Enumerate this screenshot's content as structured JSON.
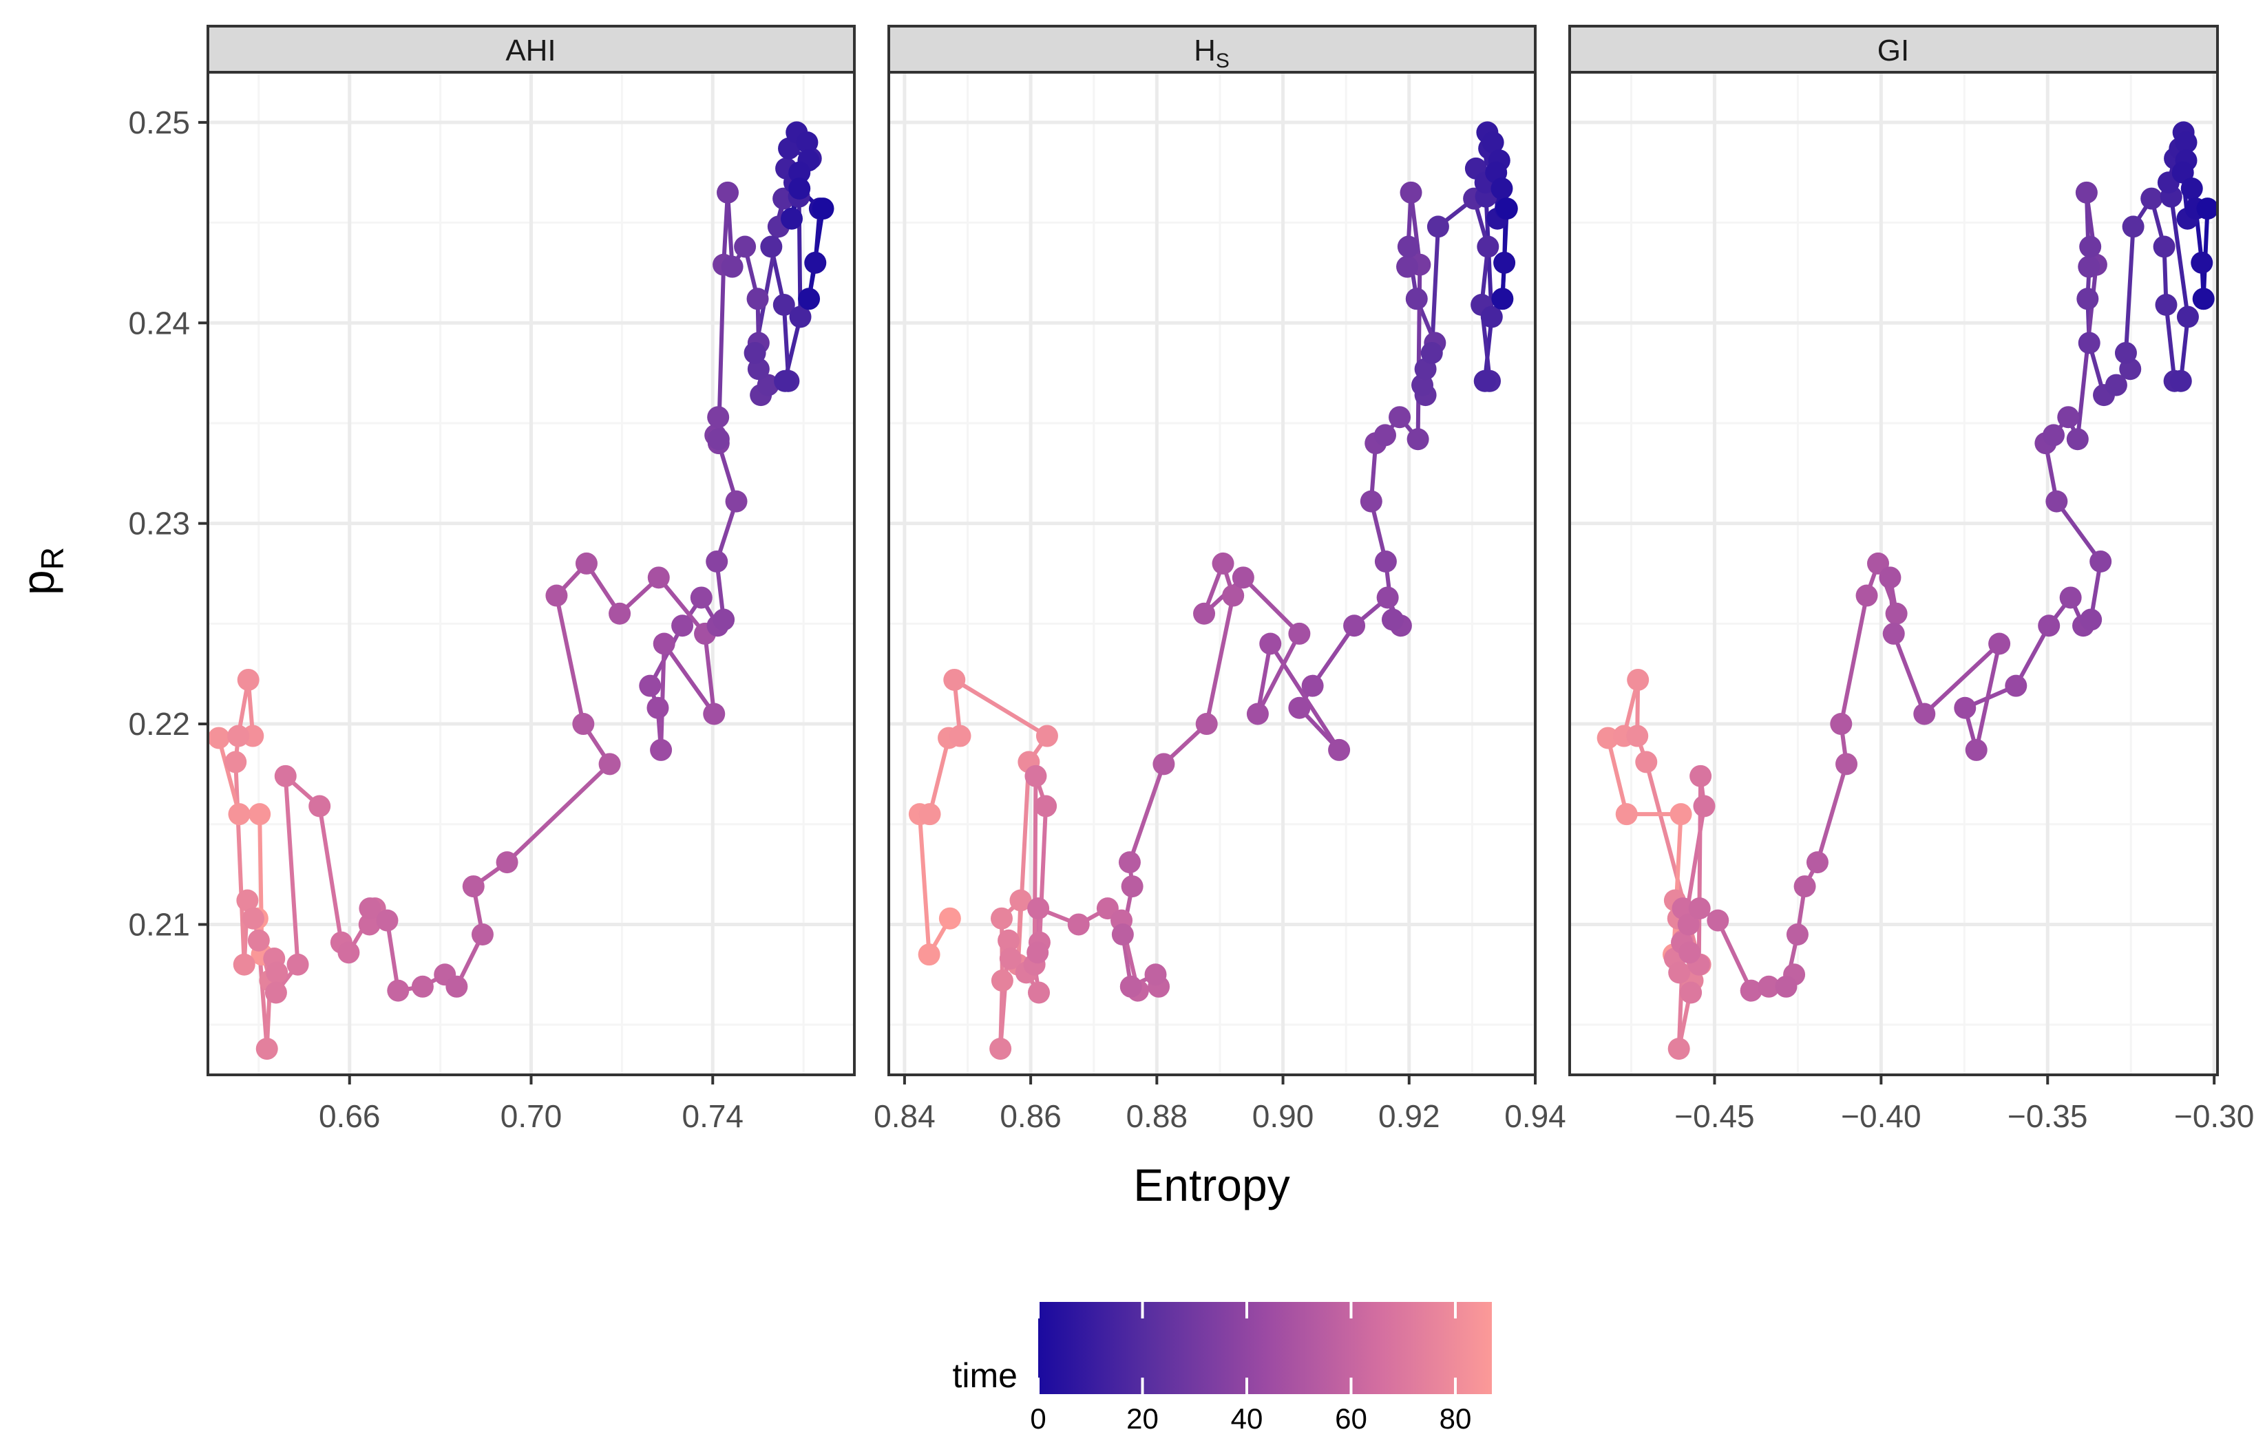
{
  "chart_data": {
    "type": "line",
    "subtype": "connected scatter, faceted",
    "xlabel": "Entropy",
    "ylabel": "p",
    "ylabel_sub": "R",
    "ylim": [
      0.2025,
      0.2525
    ],
    "y_ticks": [
      0.21,
      0.22,
      0.23,
      0.24,
      0.25
    ],
    "y_tick_labels": [
      "0.21",
      "0.22",
      "0.23",
      "0.24",
      "0.25"
    ],
    "grid": true,
    "facets": [
      {
        "name": "AHI",
        "label_main": "AHI",
        "label_sub": "",
        "xlim": [
          0.6288,
          0.7712
        ],
        "x_ticks": [
          0.66,
          0.7,
          0.74
        ],
        "x_tick_labels": [
          "0.66",
          "0.70",
          "0.74"
        ]
      },
      {
        "name": "Hs",
        "label_main": "H",
        "label_sub": "S",
        "xlim": [
          0.8375,
          0.94
        ],
        "x_ticks": [
          0.84,
          0.86,
          0.88,
          0.9,
          0.92,
          0.94
        ],
        "x_tick_labels": [
          "0.84",
          "0.86",
          "0.88",
          "0.90",
          "0.92",
          "0.94"
        ]
      },
      {
        "name": "GI",
        "label_main": "GI",
        "label_sub": "",
        "xlim": [
          -0.4935,
          -0.299
        ],
        "x_ticks": [
          -0.45,
          -0.4,
          -0.35,
          -0.3
        ],
        "x_tick_labels": [
          "−0.45",
          "−0.40",
          "−0.35",
          "−0.30"
        ]
      }
    ],
    "series": [
      {
        "name": "AHI",
        "x": [
          0.7643,
          0.7612,
          0.7626,
          0.7636,
          0.7591,
          0.7574,
          0.7591,
          0.7611,
          0.7608,
          0.7585,
          0.7568,
          0.7616,
          0.758,
          0.7562,
          0.759,
          0.7593,
          0.7559,
          0.7567,
          0.7557,
          0.7529,
          0.7556,
          0.7545,
          0.7493,
          0.7501,
          0.7522,
          0.7506,
          0.7501,
          0.7499,
          0.7471,
          0.7443,
          0.7433,
          0.7424,
          0.7413,
          0.7412,
          0.7406,
          0.7413,
          0.7452,
          0.7409,
          0.7424,
          0.7411,
          0.7375,
          0.7333,
          0.7262,
          0.7279,
          0.7286,
          0.7293,
          0.7403,
          0.7383,
          0.7281,
          0.7195,
          0.7122,
          0.7056,
          0.7115,
          0.7173,
          0.6947,
          0.6873,
          0.6893,
          0.6836,
          0.681,
          0.6761,
          0.6707,
          0.6683,
          0.6645,
          0.6644,
          0.6656,
          0.6598,
          0.6582,
          0.6534,
          0.6459,
          0.6486,
          0.6438,
          0.644,
          0.6434,
          0.64,
          0.6418,
          0.6425,
          0.6388,
          0.6375,
          0.6368,
          0.6349,
          0.6355,
          0.6377,
          0.6387,
          0.6312,
          0.6357,
          0.6402,
          0.6407,
          0.6397
        ],
        "y": [
          0.2457,
          0.2412,
          0.243,
          0.2457,
          0.2467,
          0.2452,
          0.2475,
          0.2481,
          0.249,
          0.2495,
          0.2487,
          0.2482,
          0.247,
          0.2477,
          0.2463,
          0.2403,
          0.2371,
          0.2371,
          0.2409,
          0.2438,
          0.2462,
          0.2448,
          0.2385,
          0.2377,
          0.2369,
          0.2364,
          0.239,
          0.2412,
          0.2438,
          0.2428,
          0.2465,
          0.2429,
          0.2342,
          0.2353,
          0.2344,
          0.234,
          0.2311,
          0.2281,
          0.2252,
          0.2249,
          0.2263,
          0.2249,
          0.2219,
          0.2208,
          0.2187,
          0.224,
          0.2205,
          0.2245,
          0.2273,
          0.2255,
          0.228,
          0.2264,
          0.22,
          0.218,
          0.2131,
          0.2119,
          0.2095,
          0.2069,
          0.2075,
          0.2069,
          0.2067,
          0.2102,
          0.2108,
          0.21,
          0.2108,
          0.2086,
          0.2091,
          0.2159,
          0.2174,
          0.208,
          0.2066,
          0.2076,
          0.2083,
          0.2092,
          0.2038,
          0.2072,
          0.2103,
          0.2112,
          0.208,
          0.2181,
          0.2194,
          0.2222,
          0.2194,
          0.2193,
          0.2155,
          0.2155,
          0.2085,
          0.2103
        ]
      },
      {
        "name": "Hs",
        "x": [
          0.9355,
          0.9348,
          0.9351,
          0.9353,
          0.9347,
          0.934,
          0.9338,
          0.9343,
          0.9333,
          0.9324,
          0.9327,
          0.9336,
          0.9321,
          0.9306,
          0.9322,
          0.9331,
          0.932,
          0.9328,
          0.9315,
          0.9325,
          0.9303,
          0.9246,
          0.9236,
          0.9226,
          0.9221,
          0.9226,
          0.9241,
          0.9212,
          0.9199,
          0.9197,
          0.9203,
          0.9217,
          0.9214,
          0.9185,
          0.9162,
          0.9147,
          0.914,
          0.9163,
          0.9174,
          0.9187,
          0.9166,
          0.9113,
          0.9047,
          0.9026,
          0.9089,
          0.898,
          0.896,
          0.9026,
          0.8937,
          0.8875,
          0.8905,
          0.8921,
          0.8879,
          0.8811,
          0.8757,
          0.8761,
          0.8746,
          0.8759,
          0.8798,
          0.8803,
          0.877,
          0.8744,
          0.8722,
          0.8676,
          0.8612,
          0.8611,
          0.8614,
          0.8624,
          0.8608,
          0.8606,
          0.8613,
          0.8593,
          0.8568,
          0.8565,
          0.8552,
          0.8555,
          0.8554,
          0.8584,
          0.858,
          0.8597,
          0.8626,
          0.8479,
          0.8488,
          0.847,
          0.844,
          0.8424,
          0.8439,
          0.8472
        ],
        "y": [
          0.2457,
          0.2412,
          0.243,
          0.2457,
          0.2467,
          0.2452,
          0.2475,
          0.2481,
          0.249,
          0.2495,
          0.2487,
          0.2482,
          0.247,
          0.2477,
          0.2463,
          0.2403,
          0.2371,
          0.2371,
          0.2409,
          0.2438,
          0.2462,
          0.2448,
          0.2385,
          0.2377,
          0.2369,
          0.2364,
          0.239,
          0.2412,
          0.2438,
          0.2428,
          0.2465,
          0.2429,
          0.2342,
          0.2353,
          0.2344,
          0.234,
          0.2311,
          0.2281,
          0.2252,
          0.2249,
          0.2263,
          0.2249,
          0.2219,
          0.2208,
          0.2187,
          0.224,
          0.2205,
          0.2245,
          0.2273,
          0.2255,
          0.228,
          0.2264,
          0.22,
          0.218,
          0.2131,
          0.2119,
          0.2095,
          0.2069,
          0.2075,
          0.2069,
          0.2067,
          0.2102,
          0.2108,
          0.21,
          0.2108,
          0.2086,
          0.2091,
          0.2159,
          0.2174,
          0.208,
          0.2066,
          0.2076,
          0.2083,
          0.2092,
          0.2038,
          0.2072,
          0.2103,
          0.2112,
          0.208,
          0.2181,
          0.2194,
          0.2222,
          0.2194,
          0.2193,
          0.2155,
          0.2155,
          0.2085,
          0.2103
        ]
      },
      {
        "name": "GI",
        "x": [
          -0.302,
          -0.3032,
          -0.3037,
          -0.3055,
          -0.3067,
          -0.308,
          -0.3094,
          -0.3084,
          -0.3084,
          -0.3092,
          -0.3103,
          -0.3118,
          -0.3137,
          -0.3099,
          -0.3129,
          -0.3079,
          -0.31,
          -0.3119,
          -0.3144,
          -0.315,
          -0.3188,
          -0.3243,
          -0.3265,
          -0.3252,
          -0.3294,
          -0.3331,
          -0.3375,
          -0.338,
          -0.3372,
          -0.3376,
          -0.3383,
          -0.3354,
          -0.341,
          -0.3438,
          -0.3482,
          -0.3506,
          -0.3473,
          -0.3341,
          -0.337,
          -0.3393,
          -0.3431,
          -0.3496,
          -0.3595,
          -0.3748,
          -0.3714,
          -0.3645,
          -0.387,
          -0.3962,
          -0.3973,
          -0.3954,
          -0.4009,
          -0.4043,
          -0.412,
          -0.4104,
          -0.4191,
          -0.4229,
          -0.4251,
          -0.4285,
          -0.4261,
          -0.4337,
          -0.439,
          -0.449,
          -0.4545,
          -0.4578,
          -0.4595,
          -0.4575,
          -0.4598,
          -0.4531,
          -0.4542,
          -0.4547,
          -0.4571,
          -0.4606,
          -0.4619,
          -0.4594,
          -0.4607,
          -0.4566,
          -0.4609,
          -0.4619,
          -0.4543,
          -0.4705,
          -0.4732,
          -0.473,
          -0.4772,
          -0.482,
          -0.4764,
          -0.4601,
          -0.4623,
          -0.4608
        ],
        "y": [
          0.2457,
          0.2412,
          0.243,
          0.2457,
          0.2467,
          0.2452,
          0.2475,
          0.2481,
          0.249,
          0.2495,
          0.2487,
          0.2482,
          0.247,
          0.2477,
          0.2463,
          0.2403,
          0.2371,
          0.2371,
          0.2409,
          0.2438,
          0.2462,
          0.2448,
          0.2385,
          0.2377,
          0.2369,
          0.2364,
          0.239,
          0.2412,
          0.2438,
          0.2428,
          0.2465,
          0.2429,
          0.2342,
          0.2353,
          0.2344,
          0.234,
          0.2311,
          0.2281,
          0.2252,
          0.2249,
          0.2263,
          0.2249,
          0.2219,
          0.2208,
          0.2187,
          0.224,
          0.2205,
          0.2245,
          0.2273,
          0.2255,
          0.228,
          0.2264,
          0.22,
          0.218,
          0.2131,
          0.2119,
          0.2095,
          0.2069,
          0.2075,
          0.2069,
          0.2067,
          0.2102,
          0.2108,
          0.21,
          0.2108,
          0.2086,
          0.2091,
          0.2159,
          0.2174,
          0.208,
          0.2066,
          0.2076,
          0.2083,
          0.2092,
          0.2038,
          0.2072,
          0.2103,
          0.2112,
          0.208,
          0.2181,
          0.2194,
          0.2222,
          0.2194,
          0.2193,
          0.2155,
          0.2155,
          0.2085,
          0.2103
        ]
      }
    ],
    "time": [
      0,
      1,
      2,
      3,
      4,
      5,
      6,
      7,
      8,
      9,
      10,
      11,
      12,
      13,
      14,
      15,
      16,
      17,
      18,
      19,
      20,
      21,
      22,
      23,
      24,
      25,
      26,
      27,
      28,
      29,
      30,
      31,
      32,
      33,
      34,
      35,
      36,
      37,
      38,
      39,
      40,
      41,
      42,
      43,
      44,
      45,
      46,
      47,
      48,
      49,
      50,
      51,
      52,
      53,
      54,
      55,
      56,
      57,
      58,
      59,
      60,
      61,
      62,
      63,
      64,
      65,
      66,
      67,
      68,
      69,
      70,
      71,
      72,
      73,
      74,
      75,
      76,
      77,
      78,
      79,
      80,
      81,
      82,
      83,
      84,
      85,
      86,
      87
    ],
    "color_scale": {
      "title": "time",
      "range": [
        0,
        87
      ],
      "ticks": [
        0,
        20,
        40,
        60,
        80
      ],
      "tick_labels": [
        "0",
        "20",
        "40",
        "60",
        "80"
      ],
      "stops": [
        {
          "t": 0.0,
          "color": "#1a0a9f"
        },
        {
          "t": 0.25,
          "color": "#5a2fa0"
        },
        {
          "t": 0.5,
          "color": "#9b4aa3"
        },
        {
          "t": 0.75,
          "color": "#d36ea0"
        },
        {
          "t": 1.0,
          "color": "#fc9a98"
        }
      ]
    }
  },
  "colors": {
    "panel_border": "#333333",
    "strip_fill": "#d9d9d9",
    "grid_major": "#ebebeb",
    "grid_minor": "#f5f5f5"
  }
}
